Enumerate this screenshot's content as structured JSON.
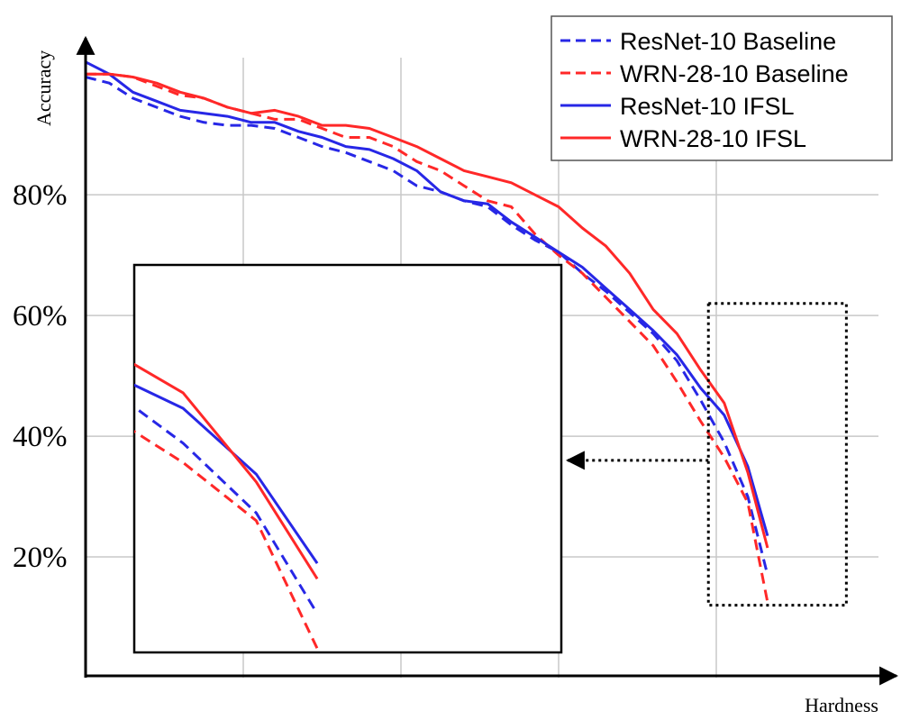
{
  "chart_data": {
    "type": "line",
    "xlabel": "Hardness",
    "ylabel": "Accuracy",
    "ylim": [
      0,
      106
    ],
    "xlim": [
      0,
      1
    ],
    "y_ticks": [
      {
        "value": 20,
        "label": "20%"
      },
      {
        "value": 40,
        "label": "40%"
      },
      {
        "value": 60,
        "label": "60%"
      },
      {
        "value": 80,
        "label": "80%"
      }
    ],
    "x_gridlines": [
      0.2,
      0.4,
      0.6,
      0.8
    ],
    "grid": true,
    "legend_position": "top-right",
    "series": [
      {
        "name": "ResNet-10 Baseline",
        "color": "#2727e6",
        "style": "dashed",
        "points": [
          [
            0,
            99.5
          ],
          [
            0.03,
            98.5
          ],
          [
            0.06,
            96
          ],
          [
            0.09,
            94.5
          ],
          [
            0.12,
            93
          ],
          [
            0.15,
            92
          ],
          [
            0.18,
            91.5
          ],
          [
            0.21,
            91.5
          ],
          [
            0.24,
            91
          ],
          [
            0.27,
            89.5
          ],
          [
            0.3,
            88
          ],
          [
            0.33,
            87
          ],
          [
            0.36,
            85.5
          ],
          [
            0.39,
            84
          ],
          [
            0.42,
            81.5
          ],
          [
            0.45,
            80.5
          ],
          [
            0.48,
            79
          ],
          [
            0.51,
            78
          ],
          [
            0.54,
            75
          ],
          [
            0.57,
            72.5
          ],
          [
            0.6,
            70.5
          ],
          [
            0.63,
            67
          ],
          [
            0.66,
            64
          ],
          [
            0.69,
            60.5
          ],
          [
            0.72,
            57
          ],
          [
            0.75,
            52.5
          ],
          [
            0.78,
            46
          ],
          [
            0.81,
            39
          ],
          [
            0.84,
            30
          ],
          [
            0.865,
            17
          ]
        ]
      },
      {
        "name": "WRN-28-10 Baseline",
        "color": "#ff2828",
        "style": "dashed",
        "points": [
          [
            0,
            100
          ],
          [
            0.03,
            100
          ],
          [
            0.06,
            99.5
          ],
          [
            0.09,
            98
          ],
          [
            0.12,
            96.5
          ],
          [
            0.15,
            96
          ],
          [
            0.18,
            94.5
          ],
          [
            0.21,
            93.5
          ],
          [
            0.24,
            92.5
          ],
          [
            0.27,
            92.5
          ],
          [
            0.3,
            91
          ],
          [
            0.33,
            89.5
          ],
          [
            0.36,
            89.5
          ],
          [
            0.39,
            88
          ],
          [
            0.42,
            85.5
          ],
          [
            0.45,
            84
          ],
          [
            0.48,
            81.5
          ],
          [
            0.51,
            79
          ],
          [
            0.54,
            78
          ],
          [
            0.57,
            73.5
          ],
          [
            0.6,
            70
          ],
          [
            0.63,
            67
          ],
          [
            0.66,
            63
          ],
          [
            0.69,
            59
          ],
          [
            0.72,
            55
          ],
          [
            0.75,
            49
          ],
          [
            0.78,
            42.5
          ],
          [
            0.81,
            36.5
          ],
          [
            0.84,
            29
          ],
          [
            0.865,
            12.5
          ]
        ]
      },
      {
        "name": "ResNet-10 IFSL",
        "color": "#2727e6",
        "style": "solid",
        "points": [
          [
            0,
            102
          ],
          [
            0.03,
            100
          ],
          [
            0.06,
            97
          ],
          [
            0.09,
            95.5
          ],
          [
            0.12,
            94
          ],
          [
            0.15,
            93.5
          ],
          [
            0.18,
            93
          ],
          [
            0.21,
            92
          ],
          [
            0.24,
            92
          ],
          [
            0.27,
            90.5
          ],
          [
            0.3,
            89.5
          ],
          [
            0.33,
            88
          ],
          [
            0.36,
            87.5
          ],
          [
            0.39,
            86
          ],
          [
            0.42,
            84
          ],
          [
            0.45,
            80.5
          ],
          [
            0.48,
            79
          ],
          [
            0.51,
            78.5
          ],
          [
            0.54,
            75.5
          ],
          [
            0.57,
            73
          ],
          [
            0.6,
            70.5
          ],
          [
            0.63,
            68
          ],
          [
            0.66,
            64.5
          ],
          [
            0.69,
            61
          ],
          [
            0.72,
            57.5
          ],
          [
            0.75,
            53.5
          ],
          [
            0.78,
            48
          ],
          [
            0.81,
            43.5
          ],
          [
            0.84,
            35
          ],
          [
            0.865,
            23.5
          ]
        ]
      },
      {
        "name": "WRN-28-10 IFSL",
        "color": "#ff2828",
        "style": "solid",
        "points": [
          [
            0,
            100
          ],
          [
            0.03,
            100
          ],
          [
            0.06,
            99.5
          ],
          [
            0.09,
            98.5
          ],
          [
            0.12,
            97
          ],
          [
            0.15,
            96
          ],
          [
            0.18,
            94.5
          ],
          [
            0.21,
            93.5
          ],
          [
            0.24,
            94
          ],
          [
            0.27,
            93
          ],
          [
            0.3,
            91.5
          ],
          [
            0.33,
            91.5
          ],
          [
            0.36,
            91
          ],
          [
            0.39,
            89.5
          ],
          [
            0.42,
            88
          ],
          [
            0.45,
            86
          ],
          [
            0.48,
            84
          ],
          [
            0.51,
            83
          ],
          [
            0.54,
            82
          ],
          [
            0.57,
            80
          ],
          [
            0.6,
            78
          ],
          [
            0.63,
            74.5
          ],
          [
            0.66,
            71.5
          ],
          [
            0.69,
            67
          ],
          [
            0.72,
            61
          ],
          [
            0.75,
            57
          ],
          [
            0.78,
            51
          ],
          [
            0.81,
            45.5
          ],
          [
            0.84,
            34
          ],
          [
            0.865,
            21.5
          ]
        ]
      }
    ],
    "zoom_box": {
      "x_range": [
        0.79,
        0.965
      ],
      "y_range": [
        12,
        62
      ]
    }
  }
}
